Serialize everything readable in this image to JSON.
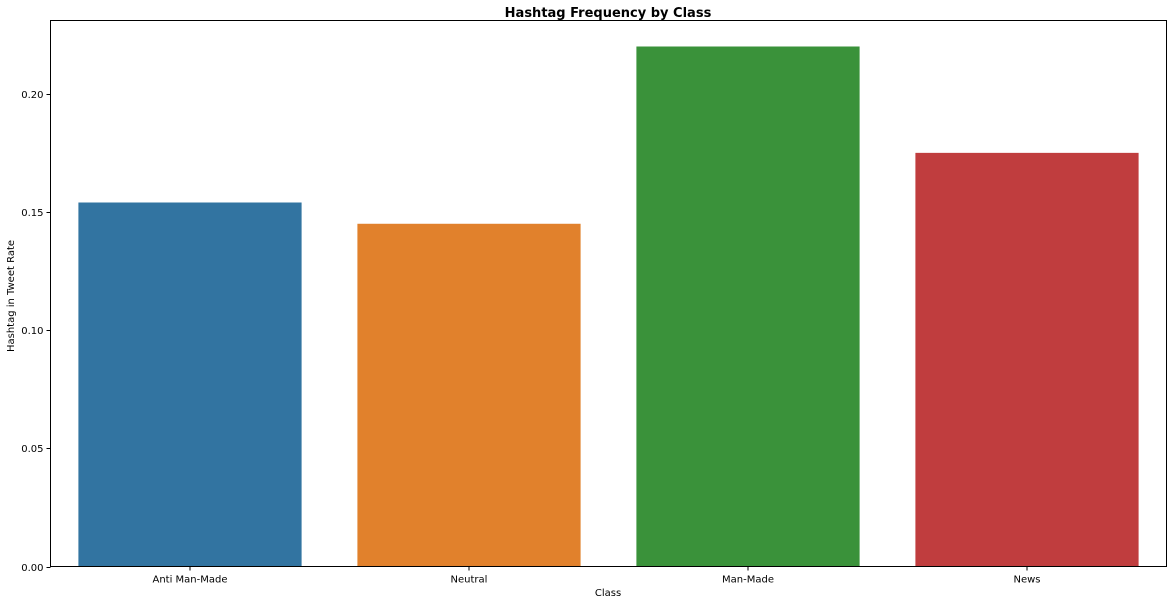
{
  "chart_data": {
    "type": "bar",
    "title": "Hashtag Frequency by Class",
    "xlabel": "Class",
    "ylabel": "Hashtag in Tweet Rate",
    "categories": [
      "Anti Man-Made",
      "Neutral",
      "Man-Made",
      "News"
    ],
    "values": [
      0.154,
      0.145,
      0.22,
      0.175
    ],
    "colors": [
      "#3274a1",
      "#e1812c",
      "#3a923a",
      "#c03d3e"
    ],
    "ylim": [
      0,
      0.231
    ],
    "yticks": [
      0.0,
      0.05,
      0.1,
      0.15,
      0.2
    ],
    "ytick_labels": [
      "0.00",
      "0.05",
      "0.10",
      "0.15",
      "0.20"
    ],
    "grid": false,
    "legend": false
  }
}
